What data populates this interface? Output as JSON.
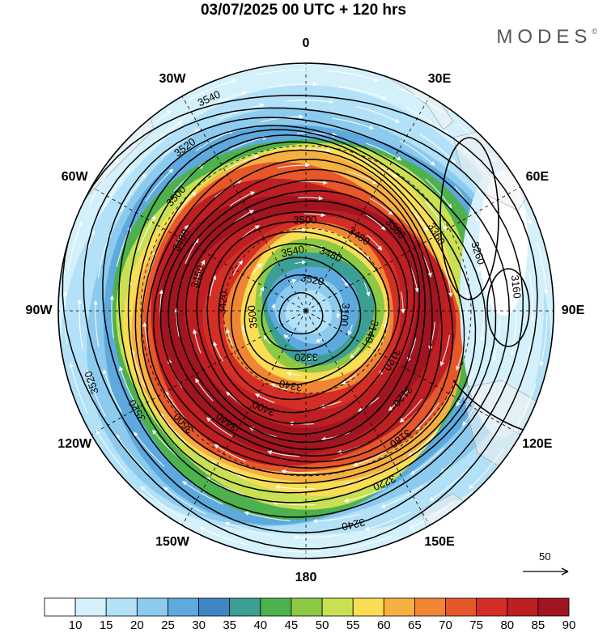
{
  "header": {
    "title": "03/07/2025  00 UTC  + 120 hrs",
    "brand": "MODES",
    "brand_mark": "©"
  },
  "map": {
    "projection": "south polar stereographic",
    "longitude_labels": [
      {
        "text": "0",
        "lon": 0
      },
      {
        "text": "30E",
        "lon": 30
      },
      {
        "text": "60E",
        "lon": 60
      },
      {
        "text": "90E",
        "lon": 90
      },
      {
        "text": "120E",
        "lon": 120
      },
      {
        "text": "150E",
        "lon": 150
      },
      {
        "text": "180",
        "lon": 180
      },
      {
        "text": "150W",
        "lon": -150
      },
      {
        "text": "120W",
        "lon": -120
      },
      {
        "text": "90W",
        "lon": -90
      },
      {
        "text": "60W",
        "lon": -60
      },
      {
        "text": "30W",
        "lon": -30
      }
    ],
    "contour_labels": [
      "3520",
      "3480",
      "3480",
      "3380",
      "3360",
      "3260",
      "3160",
      "3100",
      "3140",
      "3120",
      "3120",
      "3180",
      "3220",
      "3240",
      "3320",
      "3340",
      "3400",
      "3440",
      "3500",
      "3520",
      "3520",
      "3500",
      "3420",
      "3450",
      "3480",
      "3500",
      "3520",
      "3540",
      "3540",
      "3500"
    ],
    "shading_colors": [
      "#ffffff",
      "#d4f0fb",
      "#b3e1f7",
      "#8ccbee",
      "#5ea9de",
      "#3f86c4",
      "#3c9f93",
      "#4db24e",
      "#8cc944",
      "#c8e052",
      "#f8dd55",
      "#f6b042",
      "#f08534",
      "#e6572a",
      "#d42f26",
      "#bd1f22",
      "#a01520"
    ],
    "continents_color": "#f0f0f0",
    "reference_vector": {
      "label": "50"
    }
  },
  "colorbar": {
    "ticks": [
      "10",
      "15",
      "20",
      "25",
      "30",
      "35",
      "40",
      "45",
      "50",
      "55",
      "60",
      "65",
      "70",
      "75",
      "80",
      "85",
      "90"
    ],
    "colors": [
      "#ffffff",
      "#d4f0fb",
      "#b3e1f7",
      "#8ccbee",
      "#5ea9de",
      "#3f86c4",
      "#3c9f93",
      "#4db24e",
      "#8cc944",
      "#c8e052",
      "#f8dd55",
      "#f6b042",
      "#f08534",
      "#e6572a",
      "#d42f26",
      "#bd1f22",
      "#a01520"
    ]
  }
}
